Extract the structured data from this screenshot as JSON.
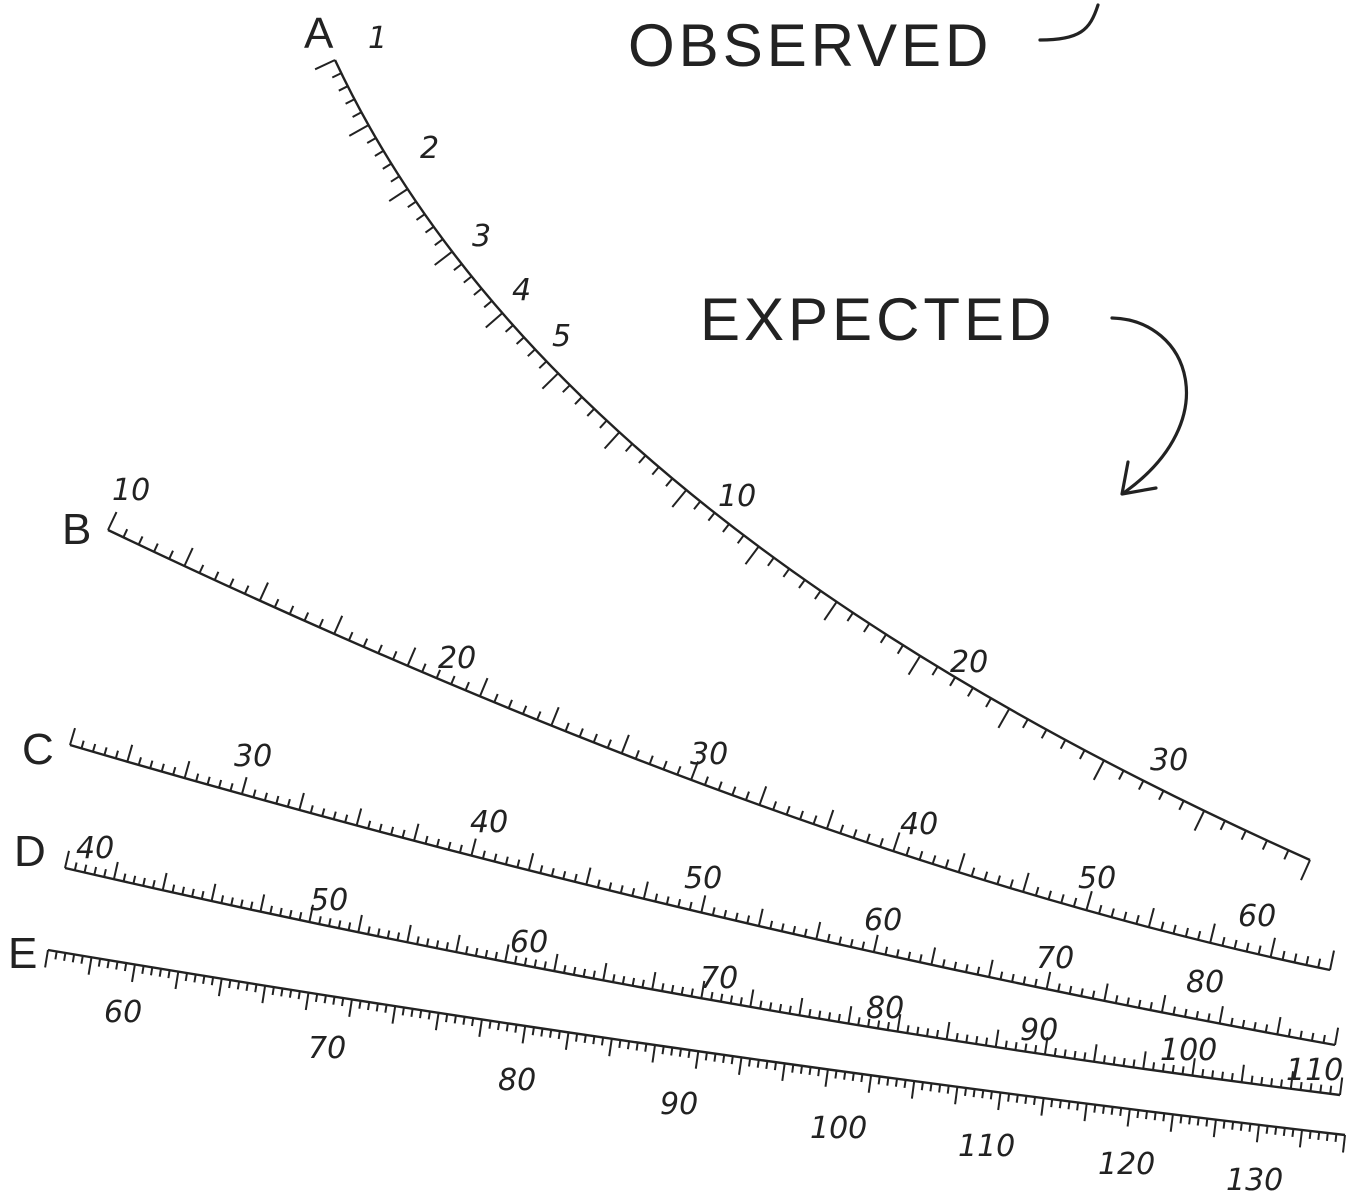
{
  "captions": {
    "observed": "OBSERVED",
    "expected": "EXPECTED"
  },
  "scales": [
    {
      "id": "A",
      "letter": "A",
      "labels": [
        "1",
        "2",
        "3",
        "4",
        "5",
        "10",
        "20",
        "30"
      ]
    },
    {
      "id": "B",
      "letter": "B",
      "labels": [
        "10",
        "20",
        "30",
        "40",
        "50",
        "60"
      ]
    },
    {
      "id": "C",
      "letter": "C",
      "labels": [
        "30",
        "40",
        "50",
        "60",
        "70",
        "80"
      ]
    },
    {
      "id": "D",
      "letter": "D",
      "labels": [
        "40",
        "50",
        "60",
        "70",
        "80",
        "90",
        "100",
        "110"
      ]
    },
    {
      "id": "E",
      "letter": "E",
      "labels": [
        "60",
        "70",
        "80",
        "90",
        "100",
        "110",
        "120",
        "130"
      ]
    }
  ]
}
